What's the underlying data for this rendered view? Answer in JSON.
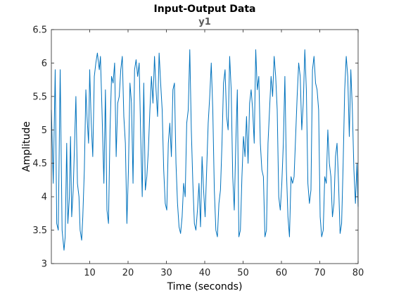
{
  "figure": {
    "background": "#ffffff",
    "axes_color": "#262626",
    "line_color": "#0072BD"
  },
  "chart_data": {
    "type": "line",
    "title": "Input-Output Data",
    "subtitle": "y1",
    "xlabel": "Time (seconds)",
    "ylabel": "Amplitude",
    "xlim": [
      0,
      80
    ],
    "ylim": [
      3,
      6.5
    ],
    "xticks": [
      10,
      20,
      30,
      40,
      50,
      60,
      70,
      80
    ],
    "yticks": [
      3,
      3.5,
      4,
      4.5,
      5,
      5.5,
      6,
      6.5
    ],
    "grid": false,
    "series": [
      {
        "x": [
          0,
          0.5,
          1,
          1.4,
          1.8,
          2.3,
          2.8,
          3.3,
          3.6,
          4,
          4.3,
          4.7,
          5,
          5.3,
          5.7,
          6,
          6.4,
          6.8,
          7.2,
          7.5,
          7.9,
          8.2,
          8.6,
          9,
          9.3,
          9.7,
          10,
          10.4,
          10.8,
          11.2,
          11.6,
          12,
          12.5,
          12.8,
          13.2,
          13.7,
          14.1,
          14.5,
          14.9,
          15.3,
          15.7,
          16.1,
          16.5,
          16.9,
          17.3,
          17.7,
          18.1,
          18.5,
          18.9,
          19.3,
          19.7,
          20.1,
          20.5,
          20.9,
          21.3,
          21.7,
          22.1,
          22.5,
          22.9,
          23.3,
          23.7,
          24.1,
          24.5,
          24.9,
          25.3,
          25.7,
          26.1,
          26.5,
          26.9,
          27.3,
          27.7,
          28.1,
          28.5,
          28.9,
          29.3,
          29.7,
          30.1,
          30.5,
          30.9,
          31.3,
          31.7,
          32.1,
          32.5,
          32.9,
          33.3,
          33.7,
          34.1,
          34.5,
          34.9,
          35.3,
          35.7,
          36.1,
          36.5,
          36.9,
          37.3,
          37.7,
          38.1,
          38.5,
          38.9,
          39.3,
          39.7,
          40.1,
          40.5,
          40.9,
          41.3,
          41.7,
          42.1,
          42.5,
          42.9,
          43.3,
          43.7,
          44.1,
          44.5,
          44.9,
          45.3,
          45.7,
          46.1,
          46.5,
          46.9,
          47.3,
          47.7,
          48.1,
          48.5,
          48.9,
          49.3,
          49.7,
          50.1,
          50.5,
          50.9,
          51.3,
          51.7,
          52.1,
          52.5,
          52.9,
          53.3,
          53.7,
          54.1,
          54.5,
          54.9,
          55.3,
          55.7,
          56.1,
          56.5,
          56.9,
          57.3,
          57.7,
          58.1,
          58.5,
          58.9,
          59.3,
          59.7,
          60.1,
          60.5,
          60.9,
          61.3,
          61.7,
          62.1,
          62.5,
          62.9,
          63.3,
          63.7,
          64.1,
          64.5,
          64.9,
          65.3,
          65.7,
          66.1,
          66.5,
          66.9,
          67.3,
          67.7,
          68.1,
          68.5,
          68.9,
          69.3,
          69.7,
          70.1,
          70.5,
          70.9,
          71.3,
          71.7,
          72.1,
          72.5,
          72.9,
          73.3,
          73.7,
          74.1,
          74.5,
          74.9,
          75.3,
          75.7,
          76.1,
          76.5,
          76.9,
          77.3,
          77.7,
          78.1,
          78.5,
          78.9,
          79.3,
          79.7,
          80
        ],
        "y": [
          5.3,
          4.2,
          5.9,
          3.6,
          3.5,
          5.9,
          3.5,
          3.2,
          3.4,
          4.8,
          3.6,
          4.0,
          4.9,
          3.7,
          4.1,
          4.7,
          5.5,
          4.2,
          4.0,
          3.5,
          3.35,
          3.7,
          4.4,
          5.6,
          5.2,
          4.8,
          5.9,
          5.1,
          4.6,
          5.8,
          6.0,
          6.15,
          5.9,
          6.1,
          5.3,
          4.2,
          5.6,
          3.8,
          3.6,
          5.0,
          5.8,
          5.7,
          6.0,
          4.6,
          5.4,
          5.5,
          5.9,
          6.1,
          5.2,
          4.8,
          3.6,
          4.4,
          5.7,
          5.4,
          4.2,
          5.9,
          6.05,
          5.8,
          6.0,
          4.9,
          4.0,
          5.7,
          4.1,
          4.3,
          4.7,
          5.3,
          5.8,
          5.4,
          6.1,
          5.6,
          5.2,
          6.15,
          5.7,
          5.3,
          4.4,
          3.9,
          3.8,
          4.8,
          5.1,
          4.6,
          5.6,
          5.7,
          4.5,
          3.9,
          3.55,
          3.45,
          3.7,
          4.2,
          4.0,
          5.1,
          5.3,
          6.2,
          5.0,
          4.2,
          3.6,
          3.5,
          3.8,
          4.2,
          3.55,
          4.6,
          4.1,
          3.7,
          4.4,
          5.1,
          5.5,
          6.0,
          5.3,
          4.1,
          3.5,
          3.4,
          3.9,
          4.1,
          4.8,
          5.7,
          5.9,
          5.2,
          5.0,
          6.1,
          5.6,
          4.3,
          3.8,
          4.8,
          5.6,
          3.4,
          3.5,
          4.3,
          4.9,
          4.6,
          5.2,
          4.5,
          5.4,
          5.6,
          5.3,
          4.8,
          6.2,
          5.6,
          5.8,
          4.8,
          4.4,
          4.3,
          3.4,
          3.5,
          4.8,
          5.3,
          5.8,
          5.5,
          6.1,
          5.8,
          5.3,
          4.0,
          3.8,
          4.2,
          4.8,
          5.8,
          4.4,
          3.7,
          3.4,
          4.3,
          4.2,
          4.3,
          4.9,
          5.5,
          6.0,
          5.8,
          5.0,
          5.4,
          6.2,
          5.6,
          4.2,
          3.9,
          4.1,
          5.9,
          6.1,
          5.7,
          5.6,
          5.3,
          3.7,
          3.4,
          3.5,
          4.3,
          4.2,
          5.0,
          4.5,
          4.3,
          3.7,
          3.9,
          4.6,
          4.8,
          4.2,
          3.45,
          3.6,
          4.5,
          5.6,
          6.1,
          5.8,
          4.9,
          5.9,
          5.3,
          4.4,
          3.9,
          4.5,
          3.85
        ]
      }
    ]
  }
}
